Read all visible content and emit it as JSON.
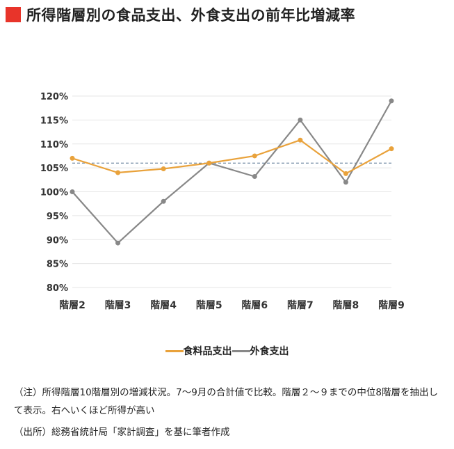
{
  "title": "所得階層別の食品支出、外食支出の前年比増減率",
  "colors": {
    "title_square": "#e8342a",
    "food": "#e9a23b",
    "dining": "#888888",
    "reference_line": "#4a6b8a",
    "grid": "#e6e6e6"
  },
  "chart_data": {
    "type": "line",
    "categories": [
      "階層2",
      "階層3",
      "階層4",
      "階層5",
      "階層6",
      "階層7",
      "階層8",
      "階層9"
    ],
    "series": [
      {
        "name": "食料品支出",
        "values": [
          107,
          104,
          104.8,
          106,
          107.5,
          110.8,
          103.8,
          109
        ]
      },
      {
        "name": "外食支出",
        "values": [
          100,
          89.3,
          98,
          106,
          103.2,
          115,
          102,
          119
        ]
      }
    ],
    "reference_line": 106,
    "ylim": [
      80,
      120
    ],
    "yticks": [
      80,
      85,
      90,
      95,
      100,
      105,
      110,
      115,
      120
    ],
    "ytick_labels": [
      "80%",
      "85%",
      "90%",
      "95%",
      "100%",
      "105%",
      "110%",
      "115%",
      "120%"
    ],
    "grid": true,
    "legend_position": "bottom"
  },
  "legend": {
    "items": [
      "食料品支出",
      "外食支出"
    ]
  },
  "notes": {
    "line1": "（注）所得階層10階層別の増減状況。7～9月の合計値で比較。階層２～９までの中位8階層を抽出して表示。右へいくほど所得が高い",
    "line2": "（出所）総務省統計局「家計調査」を基に筆者作成"
  }
}
